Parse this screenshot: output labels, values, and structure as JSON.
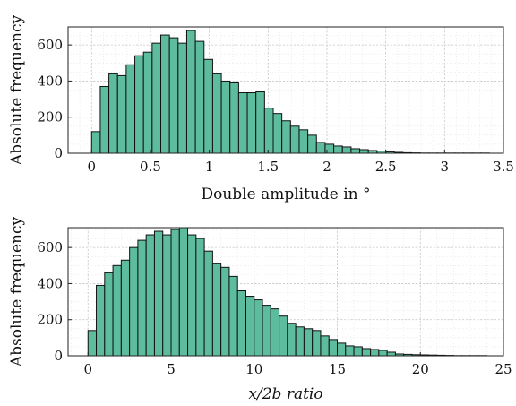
{
  "colors": {
    "bar_fill": "#5dbb9e",
    "bar_edge": "#111111",
    "axis": "#222222"
  },
  "chart_data": [
    {
      "type": "bar",
      "title": "",
      "xlabel": "Double amplitude in °",
      "ylabel": "Absolute frequency",
      "xlim": [
        -0.2,
        3.5
      ],
      "ylim": [
        0,
        700
      ],
      "xticks": [
        0,
        0.5,
        1,
        1.5,
        2,
        2.5,
        3,
        3.5
      ],
      "xtick_labels": [
        "0",
        "0.5",
        "1",
        "1.5",
        "2",
        "2.5",
        "3",
        "3.5"
      ],
      "yticks": [
        0,
        200,
        400,
        600
      ],
      "ytick_labels": [
        "0",
        "200",
        "400",
        "600"
      ],
      "grid": true,
      "bin_width": 0.0735,
      "bin_start": 0.0,
      "values": [
        120,
        370,
        440,
        430,
        490,
        540,
        560,
        610,
        655,
        640,
        610,
        680,
        620,
        520,
        440,
        400,
        390,
        335,
        335,
        340,
        250,
        220,
        180,
        150,
        130,
        100,
        60,
        50,
        40,
        35,
        25,
        20,
        15,
        12,
        8,
        5,
        3,
        2,
        1,
        1,
        1,
        1,
        1,
        1,
        1,
        1
      ]
    },
    {
      "type": "bar",
      "title": "",
      "xlabel": "x/2b ratio",
      "ylabel": "Absolute frequency",
      "xlim": [
        -1.2,
        25
      ],
      "ylim": [
        0,
        710
      ],
      "xticks": [
        0,
        5,
        10,
        15,
        20,
        25
      ],
      "xtick_labels": [
        "0",
        "5",
        "10",
        "15",
        "20",
        "25"
      ],
      "yticks": [
        0,
        200,
        400,
        600
      ],
      "ytick_labels": [
        "0",
        "200",
        "400",
        "600"
      ],
      "grid": true,
      "bin_width": 0.5,
      "bin_start": 0.0,
      "values": [
        140,
        390,
        460,
        500,
        530,
        600,
        640,
        670,
        690,
        670,
        700,
        720,
        670,
        650,
        580,
        510,
        490,
        440,
        360,
        330,
        310,
        280,
        260,
        220,
        180,
        160,
        150,
        140,
        110,
        90,
        70,
        55,
        50,
        40,
        35,
        30,
        20,
        10,
        8,
        6,
        5,
        4,
        3,
        2,
        1,
        1,
        1,
        1
      ]
    }
  ]
}
